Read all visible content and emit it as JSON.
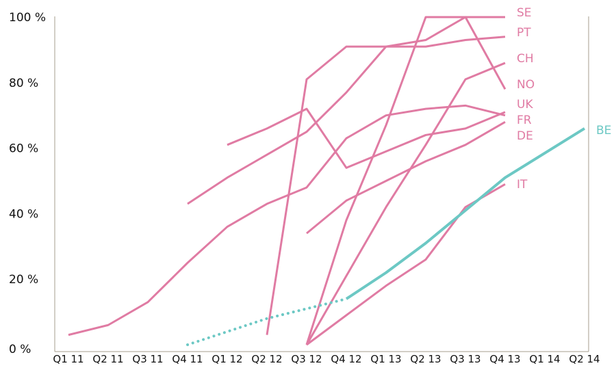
{
  "chart_data": {
    "type": "line",
    "title": "",
    "xlabel": "",
    "ylabel": "",
    "categories": [
      "Q1 11",
      "Q2 11",
      "Q3 11",
      "Q4 11",
      "Q1 12",
      "Q2 12",
      "Q3 12",
      "Q4 12",
      "Q1 13",
      "Q2 13",
      "Q3 13",
      "Q4 13",
      "Q1 14",
      "Q2 14"
    ],
    "y_ticks": [
      "0 %",
      "20 %",
      "40 %",
      "60 %",
      "80 %",
      "100 %"
    ],
    "ylim": [
      0,
      100
    ],
    "grid": false,
    "colors": {
      "pink": "#e07ba3",
      "teal": "#6cc8c4",
      "axis": "#a49c8c"
    },
    "series": [
      {
        "name": "SE",
        "color": "#e07ba3",
        "values": [
          null,
          null,
          null,
          null,
          null,
          null,
          0,
          38,
          67,
          100,
          100,
          100,
          null,
          null
        ]
      },
      {
        "name": "PT",
        "color": "#e07ba3",
        "values": [
          null,
          null,
          null,
          null,
          null,
          3,
          81,
          91,
          91,
          91,
          93,
          94,
          null,
          null
        ]
      },
      {
        "name": "CH",
        "color": "#e07ba3",
        "values": [
          null,
          null,
          null,
          null,
          null,
          null,
          0,
          21,
          42,
          61,
          81,
          86,
          null,
          null
        ]
      },
      {
        "name": "NO",
        "color": "#e07ba3",
        "values": [
          null,
          null,
          null,
          43,
          51,
          58,
          65,
          77,
          91,
          93,
          100,
          78,
          null,
          null
        ]
      },
      {
        "name": "UK",
        "color": "#e07ba3",
        "values": [
          null,
          null,
          null,
          null,
          61,
          66,
          72,
          54,
          59,
          64,
          66,
          71,
          null,
          null
        ]
      },
      {
        "name": "FR",
        "color": "#e07ba3",
        "values": [
          3,
          6,
          13,
          25,
          36,
          43,
          48,
          63,
          70,
          72,
          73,
          70,
          null,
          null
        ]
      },
      {
        "name": "DE",
        "color": "#e07ba3",
        "values": [
          null,
          null,
          null,
          null,
          null,
          null,
          34,
          44,
          50,
          56,
          61,
          68,
          null,
          null
        ]
      },
      {
        "name": "IT",
        "color": "#e07ba3",
        "values": [
          null,
          null,
          null,
          null,
          null,
          null,
          0,
          9,
          18,
          26,
          42,
          49,
          null,
          null
        ]
      },
      {
        "name": "BE",
        "color": "#6cc8c4",
        "values": [
          null,
          null,
          null,
          0,
          4,
          8,
          11,
          14,
          22,
          31,
          41,
          51,
          null,
          66
        ],
        "dotted_until": "Q4 12"
      }
    ]
  }
}
